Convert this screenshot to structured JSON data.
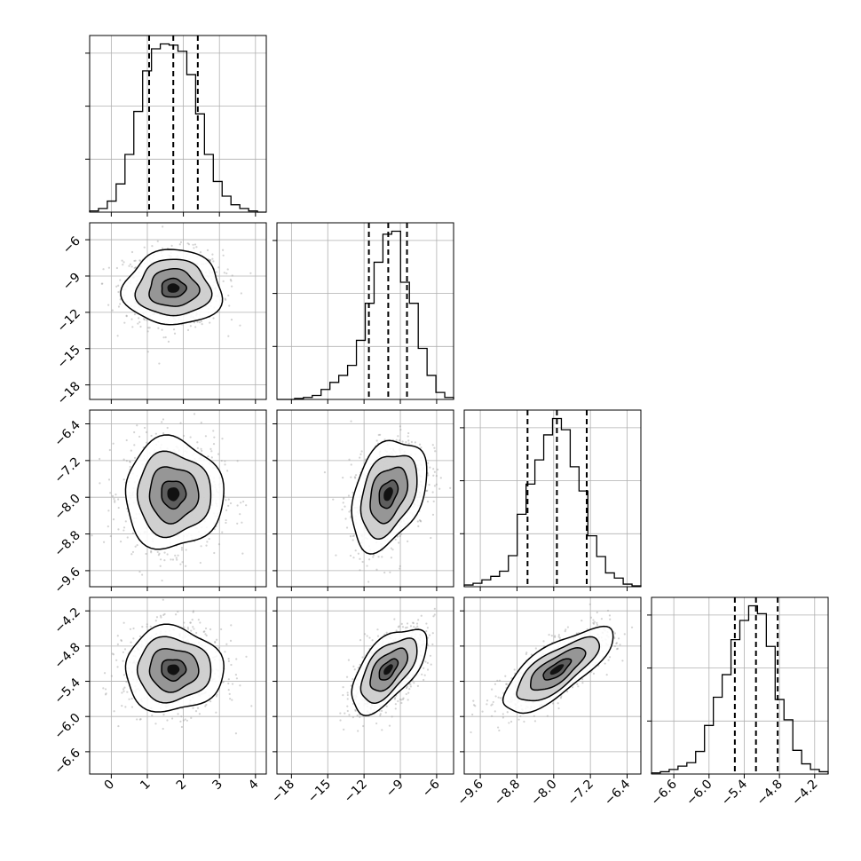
{
  "chart_data": {
    "type": "corner",
    "parameters": [
      {
        "range": [
          -0.6,
          4.3
        ],
        "ticks": [
          0,
          1,
          2,
          3,
          4
        ],
        "tick_labels": [
          "0",
          "1",
          "2",
          "3",
          "4"
        ],
        "quantiles": [
          1.05,
          1.72,
          2.4
        ]
      },
      {
        "range": [
          -19.2,
          -4.6
        ],
        "ticks": [
          -18,
          -15,
          -12,
          -9,
          -6
        ],
        "tick_labels": [
          "−18",
          "−15",
          "−12",
          "−9",
          "−6"
        ],
        "quantiles": [
          -11.6,
          -10.0,
          -8.45
        ]
      },
      {
        "range": [
          -9.95,
          -6.1
        ],
        "ticks": [
          -9.6,
          -8.8,
          -8.0,
          -7.2,
          -6.4
        ],
        "tick_labels": [
          "−9.6",
          "−8.8",
          "−8.0",
          "−7.2",
          "−6.4"
        ],
        "quantiles": [
          -8.57,
          -7.93,
          -7.28
        ]
      },
      {
        "range": [
          -6.98,
          -3.97
        ],
        "ticks": [
          -6.6,
          -6.0,
          -5.4,
          -4.8,
          -4.2
        ],
        "tick_labels": [
          "−6.6",
          "−6.0",
          "−5.4",
          "−4.8",
          "−4.2"
        ],
        "quantiles": [
          -5.56,
          -5.2,
          -4.83
        ]
      }
    ],
    "histograms": [
      {
        "bin_edges": [
          -0.6,
          -0.355,
          -0.11,
          0.135,
          0.38,
          0.625,
          0.87,
          1.115,
          1.36,
          1.605,
          1.85,
          2.095,
          2.34,
          2.585,
          2.83,
          3.075,
          3.32,
          3.565,
          3.81,
          4.055,
          4.3
        ],
        "counts": [
          1,
          3,
          9,
          23,
          47,
          82,
          115,
          133,
          137,
          136,
          131,
          112,
          80,
          47,
          25,
          13,
          6,
          3,
          1,
          0
        ]
      },
      {
        "bin_edges": [
          -19.2,
          -18.47,
          -17.74,
          -17.01,
          -16.28,
          -15.55,
          -14.82,
          -14.09,
          -13.36,
          -12.63,
          -11.9,
          -11.17,
          -10.44,
          -9.71,
          -8.98,
          -8.25,
          -7.52,
          -6.79,
          -6.06,
          -5.33,
          -4.6
        ],
        "counts": [
          0,
          0,
          1,
          2,
          4,
          10,
          17,
          24,
          34,
          59,
          96,
          137,
          165,
          168,
          117,
          96,
          51,
          24,
          7,
          2
        ]
      },
      {
        "bin_edges": [
          -9.95,
          -9.7575,
          -9.565,
          -9.3725,
          -9.18,
          -8.9875,
          -8.795,
          -8.6025,
          -8.41,
          -8.2175,
          -8.025,
          -7.8325,
          -7.64,
          -7.4475,
          -7.255,
          -7.0625,
          -6.87,
          -6.6775,
          -6.485,
          -6.2925,
          -6.1
        ],
        "counts": [
          2,
          4,
          8,
          12,
          18,
          36,
          84,
          119,
          147,
          176,
          195,
          182,
          139,
          111,
          59,
          35,
          16,
          10,
          3,
          1
        ]
      },
      {
        "bin_edges": [
          -6.98,
          -6.8295,
          -6.679,
          -6.5285,
          -6.378,
          -6.2275,
          -6.077,
          -5.9265,
          -5.776,
          -5.6255,
          -5.475,
          -5.3245,
          -5.174,
          -5.0235,
          -4.873,
          -4.7225,
          -4.572,
          -4.4215,
          -4.271,
          -4.1205,
          -3.97
        ],
        "counts": [
          1,
          2,
          4,
          7,
          10,
          20,
          43,
          68,
          88,
          119,
          136,
          149,
          142,
          113,
          66,
          48,
          21,
          9,
          4,
          2
        ]
      }
    ],
    "pairs": [
      {
        "x_param": 0,
        "y_param": 1,
        "mean": [
          1.72,
          -10.0
        ],
        "sigma": [
          0.68,
          1.55
        ],
        "rho": 0.0
      },
      {
        "x_param": 0,
        "y_param": 2,
        "mean": [
          1.72,
          -7.93
        ],
        "sigma": [
          0.68,
          0.6
        ],
        "rho": 0.0
      },
      {
        "x_param": 1,
        "y_param": 2,
        "mean": [
          -10.0,
          -7.93
        ],
        "sigma": [
          1.55,
          0.6
        ],
        "rho": 0.35
      },
      {
        "x_param": 0,
        "y_param": 3,
        "mean": [
          1.72,
          -5.2
        ],
        "sigma": [
          0.68,
          0.36
        ],
        "rho": 0.0
      },
      {
        "x_param": 1,
        "y_param": 3,
        "mean": [
          -10.0,
          -5.2
        ],
        "sigma": [
          1.55,
          0.36
        ],
        "rho": 0.6
      },
      {
        "x_param": 2,
        "y_param": 3,
        "mean": [
          -7.93,
          -5.2
        ],
        "sigma": [
          0.6,
          0.36
        ],
        "rho": 0.75
      }
    ],
    "contour_levels_sigma": [
      0.5,
      1.0,
      1.5,
      2.0
    ],
    "grid": true,
    "quantile_line_style": "dashed"
  }
}
